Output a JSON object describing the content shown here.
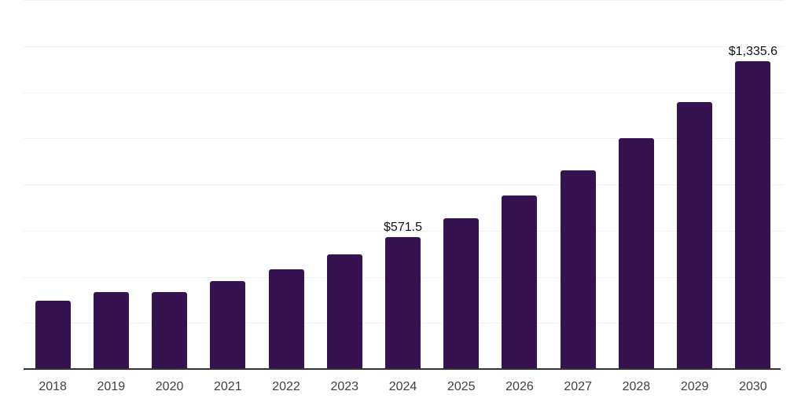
{
  "chart_data": {
    "type": "bar",
    "categories": [
      "2018",
      "2019",
      "2020",
      "2021",
      "2022",
      "2023",
      "2024",
      "2025",
      "2026",
      "2027",
      "2028",
      "2029",
      "2030"
    ],
    "values": [
      295,
      335,
      333,
      382,
      431,
      496,
      571.5,
      655,
      753,
      863,
      1002,
      1156,
      1335.6
    ],
    "point_labels": [
      {
        "category": "2024",
        "text": "$571.5"
      },
      {
        "category": "2030",
        "text": "$1,335.6"
      }
    ],
    "ylim": [
      0,
      1600
    ],
    "gridline_step": 200,
    "grid": true,
    "legend": false,
    "bar_color": "#371250",
    "axis_color": "#333333",
    "gridline_color": "#f1f1f1",
    "tick_label_color": "#404040",
    "value_label_color": "#111111"
  }
}
